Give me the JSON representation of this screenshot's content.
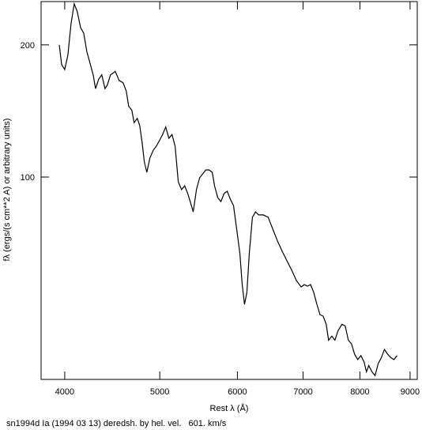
{
  "chart_data": {
    "type": "line",
    "title": "sn1994d Ia (1994 03 13) deredsh. by hel. vel.   601. km/s",
    "xlabel": "Rest λ (Å)",
    "ylabel": "fλ (ergs/(s cm**2 A) or arbitrary units)",
    "xscale": "log",
    "yscale": "log",
    "xlim": [
      3784,
      9153
    ],
    "ylim": [
      34.6,
      251
    ],
    "xticks": [
      4000,
      5000,
      6000,
      7000,
      8000,
      9000
    ],
    "yticks": [
      100,
      200
    ],
    "color": "#000000",
    "x": [
      3949,
      3971,
      4000,
      4030,
      4060,
      4090,
      4120,
      4151,
      4182,
      4213,
      4244,
      4276,
      4300,
      4332,
      4364,
      4397,
      4421,
      4454,
      4504,
      4545,
      4587,
      4622,
      4648,
      4682,
      4708,
      4743,
      4770,
      4797,
      4823,
      4850,
      4886,
      4923,
      4959,
      4996,
      5033,
      5070,
      5108,
      5146,
      5184,
      5222,
      5262,
      5301,
      5340,
      5380,
      5409,
      5450,
      5491,
      5531,
      5572,
      5614,
      5656,
      5687,
      5729,
      5772,
      5815,
      5858,
      5902,
      5945,
      5990,
      6034,
      6068,
      6101,
      6135,
      6170,
      6215,
      6261,
      6307,
      6378,
      6449,
      6520,
      6594,
      6667,
      6742,
      6817,
      6892,
      6969,
      7021,
      7073,
      7125,
      7178,
      7231,
      7284,
      7338,
      7392,
      7433,
      7489,
      7544,
      7600,
      7670,
      7728,
      7785,
      7843,
      7901,
      7960,
      8019,
      8078,
      8123,
      8168,
      8229,
      8290,
      8351,
      8413,
      8475,
      8538,
      8601,
      8665,
      8729
    ],
    "values": [
      200,
      180.3,
      175.8,
      189.5,
      223.7,
      248,
      238,
      219,
      212.8,
      193,
      182,
      171,
      159,
      167,
      171,
      159,
      162,
      171,
      174,
      166,
      164,
      157,
      145,
      142,
      133,
      136,
      131,
      120,
      108,
      102.5,
      110.5,
      115,
      117.5,
      121,
      125,
      130,
      122.5,
      125,
      117.5,
      97.5,
      93.6,
      95.5,
      91.7,
      86.8,
      83.3,
      93.6,
      99.6,
      101.7,
      103.8,
      103.8,
      102.5,
      95.5,
      89.8,
      87.9,
      91.7,
      92.8,
      89,
      86.1,
      76.1,
      67.1,
      56.9,
      51.3,
      54.6,
      67.1,
      81,
      83.3,
      82,
      82,
      81,
      76.1,
      71.4,
      67.7,
      64.4,
      61.3,
      58.1,
      56.2,
      56.9,
      56.4,
      56.9,
      54.6,
      51.3,
      48.6,
      48.2,
      46.2,
      42.5,
      43.4,
      42.5,
      44.7,
      46.2,
      45.8,
      42.5,
      41.7,
      39.5,
      38.4,
      39.2,
      37.9,
      36,
      37.2,
      36,
      35.3,
      37.6,
      38.8,
      40.5,
      39.5,
      38.8,
      38.4,
      39.2
    ]
  }
}
